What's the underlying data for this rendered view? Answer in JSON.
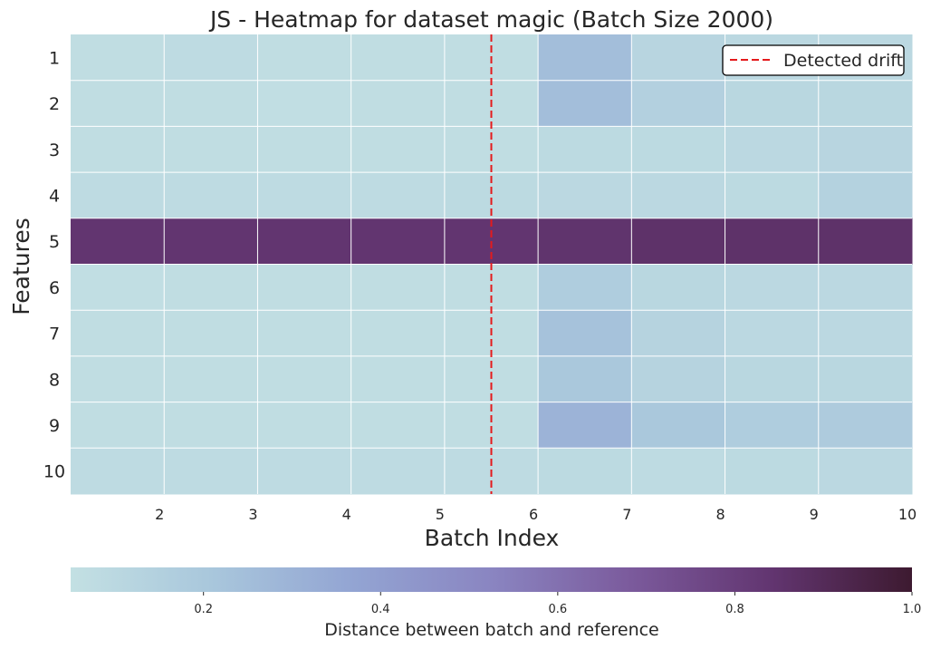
{
  "chart_data": {
    "type": "heatmap",
    "title": "JS - Heatmap for dataset magic (Batch Size 2000)",
    "xlabel": "Batch Index",
    "ylabel": "Features",
    "x_ticks": [
      "2",
      "3",
      "4",
      "5",
      "6",
      "7",
      "8",
      "9",
      "10"
    ],
    "y_labels": [
      "1",
      "2",
      "3",
      "4",
      "5",
      "6",
      "7",
      "8",
      "9",
      "10"
    ],
    "batches": [
      1,
      2,
      3,
      4,
      5,
      6,
      7,
      8,
      9
    ],
    "values": [
      [
        0.07,
        0.08,
        0.07,
        0.07,
        0.07,
        0.25,
        0.12,
        0.1,
        0.1
      ],
      [
        0.07,
        0.07,
        0.06,
        0.07,
        0.07,
        0.25,
        0.15,
        0.11,
        0.11
      ],
      [
        0.07,
        0.07,
        0.07,
        0.07,
        0.07,
        0.09,
        0.09,
        0.1,
        0.12
      ],
      [
        0.08,
        0.08,
        0.08,
        0.08,
        0.09,
        0.1,
        0.1,
        0.09,
        0.14
      ],
      [
        0.84,
        0.84,
        0.84,
        0.84,
        0.84,
        0.85,
        0.86,
        0.86,
        0.86
      ],
      [
        0.06,
        0.07,
        0.07,
        0.07,
        0.07,
        0.17,
        0.11,
        0.1,
        0.1
      ],
      [
        0.07,
        0.07,
        0.07,
        0.07,
        0.07,
        0.23,
        0.13,
        0.1,
        0.1
      ],
      [
        0.07,
        0.07,
        0.07,
        0.07,
        0.07,
        0.2,
        0.13,
        0.11,
        0.11
      ],
      [
        0.07,
        0.07,
        0.07,
        0.07,
        0.07,
        0.3,
        0.2,
        0.17,
        0.18
      ],
      [
        0.08,
        0.08,
        0.08,
        0.08,
        0.08,
        0.09,
        0.08,
        0.09,
        0.1
      ]
    ],
    "drift_line": {
      "x": 5.5,
      "label": "Detected drift",
      "color": "#e41a1c"
    },
    "legend_position": "top-right",
    "colorbar": {
      "label": "Distance between batch and reference",
      "range": [
        0.05,
        1.0
      ],
      "ticks": [
        "0.2",
        "0.4",
        "0.6",
        "0.8",
        "1.0"
      ],
      "colormap_stops": [
        "#c3e0e3",
        "#a9c7dc",
        "#93a5d3",
        "#8a85c1",
        "#7b5a9c",
        "#623570",
        "#3d1a30"
      ]
    },
    "x_range": [
      1,
      10
    ],
    "grid": true
  }
}
